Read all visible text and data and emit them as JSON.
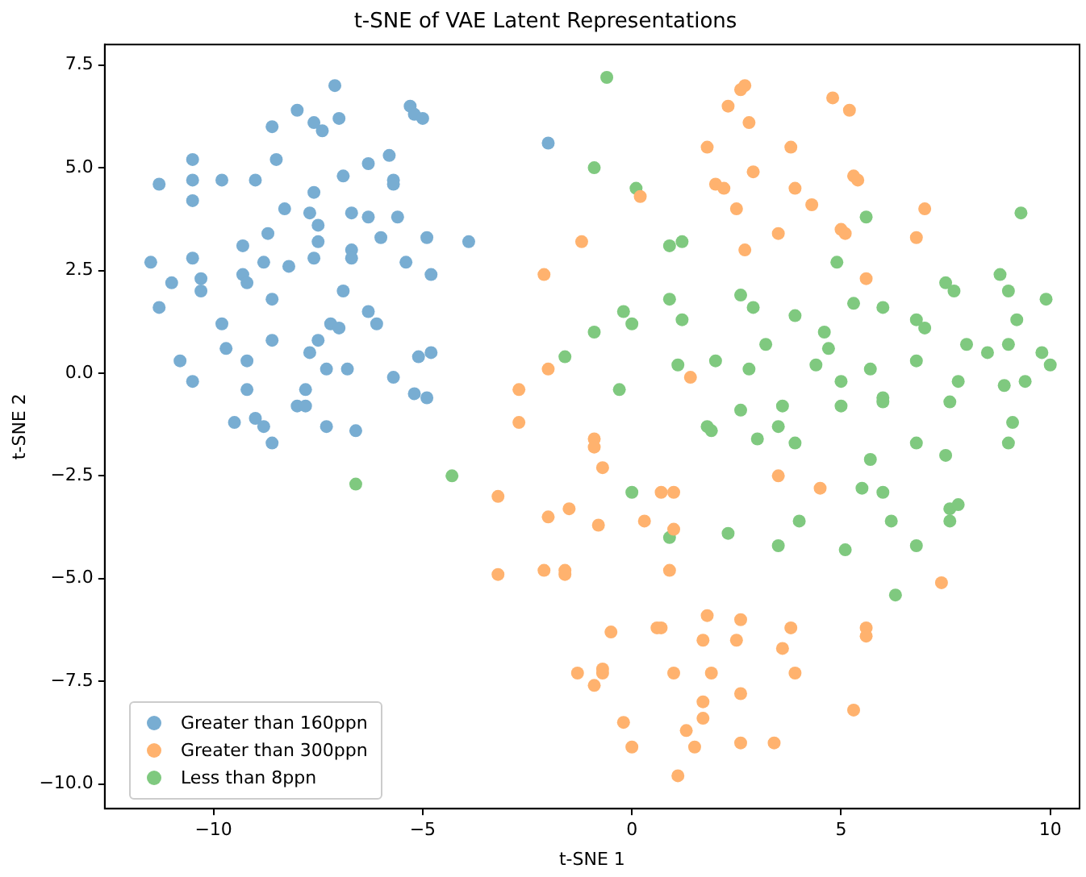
{
  "chart_data": {
    "type": "scatter",
    "title": "t-SNE of VAE Latent Representations",
    "xlabel": "t-SNE 1",
    "ylabel": "t-SNE 2",
    "xlim": [
      -12.6,
      10.7
    ],
    "ylim": [
      -10.6,
      8.0
    ],
    "xticks": [
      {
        "value": -10,
        "label": "−10"
      },
      {
        "value": -5,
        "label": "−5"
      },
      {
        "value": 0,
        "label": "0"
      },
      {
        "value": 5,
        "label": "5"
      },
      {
        "value": 10,
        "label": "10"
      }
    ],
    "yticks": [
      {
        "value": -10,
        "label": "−10.0"
      },
      {
        "value": -7.5,
        "label": "−7.5"
      },
      {
        "value": -5,
        "label": "−5.0"
      },
      {
        "value": -2.5,
        "label": "−2.5"
      },
      {
        "value": 0,
        "label": "0.0"
      },
      {
        "value": 2.5,
        "label": "2.5"
      },
      {
        "value": 5,
        "label": "5.0"
      },
      {
        "value": 7.5,
        "label": "7.5"
      }
    ],
    "grid": false,
    "legend": "bottom left",
    "marker": "circle",
    "series": [
      {
        "name": "Greater than 160ppn",
        "color": "#78add2",
        "x": [
          -11.5,
          -11.3,
          -11.3,
          -11.0,
          -10.8,
          -10.5,
          -10.5,
          -10.5,
          -10.5,
          -10.5,
          -10.3,
          -10.3,
          -9.8,
          -9.8,
          -9.7,
          -9.5,
          -9.3,
          -9.3,
          -9.2,
          -9.2,
          -9.2,
          -9.0,
          -9.0,
          -8.8,
          -8.8,
          -8.7,
          -8.6,
          -8.6,
          -8.6,
          -8.5,
          -8.6,
          -8.3,
          -8.2,
          -8.0,
          -8.0,
          -7.8,
          -7.8,
          -7.7,
          -7.7,
          -7.6,
          -7.6,
          -7.6,
          -7.5,
          -7.5,
          -7.5,
          -7.4,
          -7.3,
          -7.3,
          -7.2,
          -7.1,
          -7.0,
          -7.0,
          -6.9,
          -6.9,
          -6.8,
          -6.7,
          -6.7,
          -6.7,
          -6.6,
          -6.3,
          -6.3,
          -6.3,
          -6.1,
          -6.0,
          -5.8,
          -5.7,
          -5.7,
          -5.7,
          -5.6,
          -5.4,
          -5.3,
          -5.2,
          -5.2,
          -5.1,
          -5.0,
          -4.9,
          -4.9,
          -4.8,
          -4.8,
          -3.9,
          -2.0
        ],
        "values": [
          2.7,
          4.6,
          1.6,
          2.2,
          0.3,
          5.2,
          4.7,
          4.2,
          2.8,
          -0.2,
          2.3,
          2.0,
          4.7,
          1.2,
          0.6,
          -1.2,
          3.1,
          2.4,
          2.2,
          -0.4,
          0.3,
          4.7,
          -1.1,
          -1.3,
          2.7,
          3.4,
          1.8,
          0.8,
          6.0,
          5.2,
          -1.7,
          4.0,
          2.6,
          6.4,
          -0.8,
          -0.8,
          -0.4,
          3.9,
          0.5,
          6.1,
          4.4,
          2.8,
          3.6,
          3.2,
          0.8,
          5.9,
          0.1,
          -1.3,
          1.2,
          7.0,
          6.2,
          1.1,
          4.8,
          2.0,
          0.1,
          3.9,
          3.0,
          2.8,
          -1.4,
          5.1,
          3.8,
          1.5,
          1.2,
          3.3,
          5.3,
          4.7,
          4.6,
          -0.1,
          3.8,
          2.7,
          6.5,
          6.3,
          -0.5,
          0.4,
          6.2,
          3.3,
          -0.6,
          2.4,
          0.5,
          3.2,
          5.6
        ]
      },
      {
        "name": "Greater than 300ppn",
        "color": "#ffb26e",
        "x": [
          -2.7,
          -2.7,
          -3.2,
          -3.2,
          -2.1,
          -2.0,
          -2.0,
          -2.1,
          -1.6,
          -1.6,
          -1.5,
          -1.2,
          -0.9,
          -0.9,
          -0.7,
          -0.8,
          -1.3,
          -0.9,
          -0.7,
          -0.7,
          -0.5,
          0.2,
          -0.2,
          0.0,
          0.3,
          0.7,
          0.7,
          0.6,
          0.9,
          1.0,
          1.0,
          1.0,
          1.1,
          1.3,
          1.4,
          1.5,
          1.7,
          1.7,
          1.7,
          1.8,
          1.9,
          1.8,
          2.0,
          2.2,
          2.3,
          2.5,
          2.6,
          2.7,
          2.7,
          2.8,
          2.5,
          2.6,
          2.6,
          2.6,
          2.9,
          3.4,
          3.5,
          3.5,
          3.6,
          3.8,
          3.8,
          3.9,
          3.9,
          4.3,
          4.5,
          4.8,
          5.0,
          5.1,
          5.2,
          5.3,
          5.4,
          5.3,
          5.6,
          5.6,
          5.6,
          6.8,
          7.0,
          7.4
        ],
        "values": [
          -0.4,
          -1.2,
          -3.0,
          -4.9,
          2.4,
          0.1,
          -3.5,
          -4.8,
          -4.8,
          -4.9,
          -3.3,
          3.2,
          -1.6,
          -1.8,
          -2.3,
          -3.7,
          -7.3,
          -7.6,
          -7.3,
          -7.2,
          -6.3,
          4.3,
          -8.5,
          -9.1,
          -3.6,
          -2.9,
          -6.2,
          -6.2,
          -4.8,
          -2.9,
          -3.8,
          -7.3,
          -9.8,
          -8.7,
          -0.1,
          -9.1,
          -8.0,
          -8.4,
          -6.5,
          -5.9,
          -7.3,
          5.5,
          4.6,
          4.5,
          6.5,
          4.0,
          6.9,
          7.0,
          3.0,
          6.1,
          -6.5,
          -6.0,
          -7.8,
          -9.0,
          4.9,
          -9.0,
          3.4,
          -2.5,
          -6.7,
          -6.2,
          5.5,
          4.5,
          -7.3,
          4.1,
          -2.8,
          6.7,
          3.5,
          3.4,
          6.4,
          4.8,
          4.7,
          -8.2,
          -6.2,
          -6.4,
          2.3,
          3.3,
          4.0,
          -5.1
        ]
      },
      {
        "name": "Less than 8ppn",
        "color": "#7fc97f",
        "x": [
          -0.6,
          -0.9,
          0.1,
          0.9,
          1.2,
          0.9,
          1.2,
          1.1,
          0.0,
          -0.2,
          -0.9,
          -1.6,
          -0.3,
          0.0,
          0.9,
          1.8,
          1.9,
          2.0,
          2.3,
          2.6,
          2.6,
          2.8,
          2.9,
          3.0,
          3.2,
          3.5,
          3.6,
          3.5,
          3.9,
          3.9,
          4.0,
          4.4,
          4.6,
          4.7,
          4.9,
          5.0,
          5.0,
          5.1,
          5.3,
          5.6,
          5.7,
          5.7,
          5.5,
          6.0,
          6.0,
          6.0,
          6.0,
          6.2,
          6.3,
          6.8,
          6.8,
          6.8,
          6.8,
          7.0,
          7.5,
          7.6,
          7.5,
          7.6,
          7.6,
          7.7,
          7.8,
          7.8,
          8.0,
          8.5,
          8.8,
          8.9,
          9.0,
          9.0,
          9.1,
          9.0,
          9.2,
          9.3,
          9.4,
          9.8,
          9.9,
          10.0,
          -6.6,
          -4.3
        ],
        "values": [
          7.2,
          5.0,
          4.5,
          3.1,
          3.2,
          1.8,
          1.3,
          0.2,
          1.2,
          1.5,
          1.0,
          0.4,
          -0.4,
          -2.9,
          -4.0,
          -1.3,
          -1.4,
          0.3,
          -3.9,
          1.9,
          -0.9,
          0.1,
          1.6,
          -1.6,
          0.7,
          -1.3,
          -0.8,
          -4.2,
          1.4,
          -1.7,
          -3.6,
          0.2,
          1.0,
          0.6,
          2.7,
          -0.8,
          -0.2,
          -4.3,
          1.7,
          3.8,
          0.1,
          -2.1,
          -2.8,
          -2.9,
          1.6,
          -0.6,
          -0.7,
          -3.6,
          -5.4,
          1.3,
          0.3,
          -1.7,
          -4.2,
          1.1,
          2.2,
          -0.7,
          -2.0,
          -3.3,
          -3.6,
          2.0,
          -3.2,
          -0.2,
          0.7,
          0.5,
          2.4,
          -0.3,
          0.7,
          2.0,
          -1.2,
          -1.7,
          1.3,
          3.9,
          -0.2,
          0.5,
          1.8,
          0.2,
          -2.7,
          -2.5
        ]
      }
    ]
  }
}
